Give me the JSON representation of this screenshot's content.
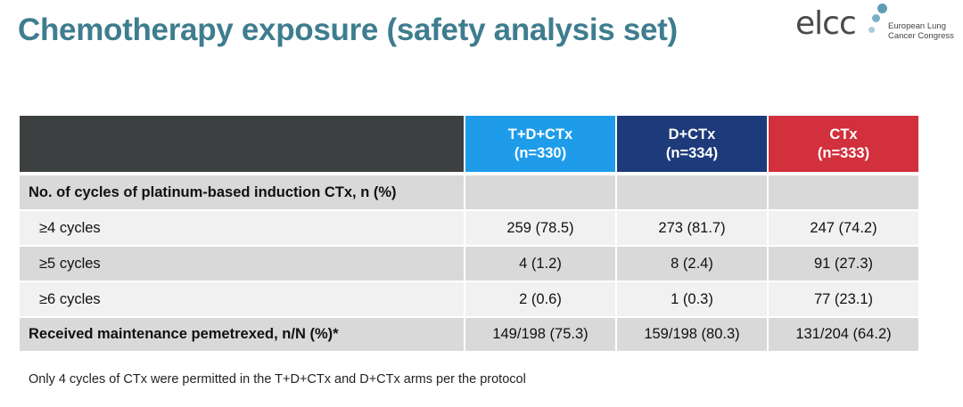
{
  "header": {
    "title": "Chemotherapy exposure (safety analysis set)",
    "logo": {
      "brand": "elcc",
      "line1": "European Lung",
      "line2": "Cancer Congress"
    }
  },
  "table": {
    "columns": [
      {
        "name": "T+D+CTx",
        "n": "(n=330)",
        "color": "#1e9cea"
      },
      {
        "name": "D+CTx",
        "n": "(n=334)",
        "color": "#1d3a7a"
      },
      {
        "name": "CTx",
        "n": "(n=333)",
        "color": "#d1303c"
      }
    ],
    "rows": [
      {
        "label": "No. of cycles of platinum-based induction CTx, n (%)"
      },
      {
        "label": "≥4 cycles",
        "cells": [
          "259 (78.5)",
          "273 (81.7)",
          "247 (74.2)"
        ]
      },
      {
        "label": "≥5 cycles",
        "cells": [
          "4 (1.2)",
          "8 (2.4)",
          "91 (27.3)"
        ]
      },
      {
        "label": "≥6 cycles",
        "cells": [
          "2 (0.6)",
          "1 (0.3)",
          "77 (23.1)"
        ]
      },
      {
        "label": "Received maintenance pemetrexed, n/N (%)*",
        "cells": [
          "149/198 (75.3)",
          "159/198 (80.3)",
          "131/204 (64.2)"
        ]
      }
    ]
  },
  "footnote": "Only 4 cycles of CTx were permitted in the T+D+CTx and D+CTx arms per the protocol"
}
